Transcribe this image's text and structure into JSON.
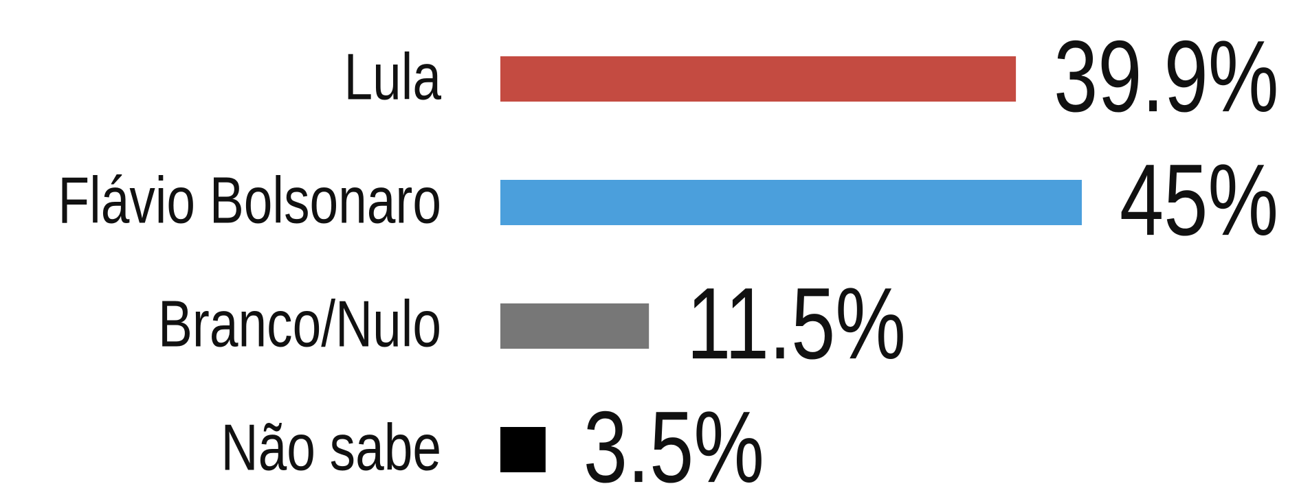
{
  "chart_data": {
    "type": "barh",
    "categories": [
      "Lula",
      "Flávio Bolsonaro",
      "Branco/Nulo",
      "Não sabe"
    ],
    "series": [
      {
        "values": [
          39.9,
          45,
          11.5,
          3.5
        ],
        "value_labels": [
          "39.9%",
          "45%",
          "11.5%",
          "3.5%"
        ],
        "colors": [
          "#c44b41",
          "#4b9fdc",
          "#777777",
          "#000000"
        ]
      }
    ]
  }
}
